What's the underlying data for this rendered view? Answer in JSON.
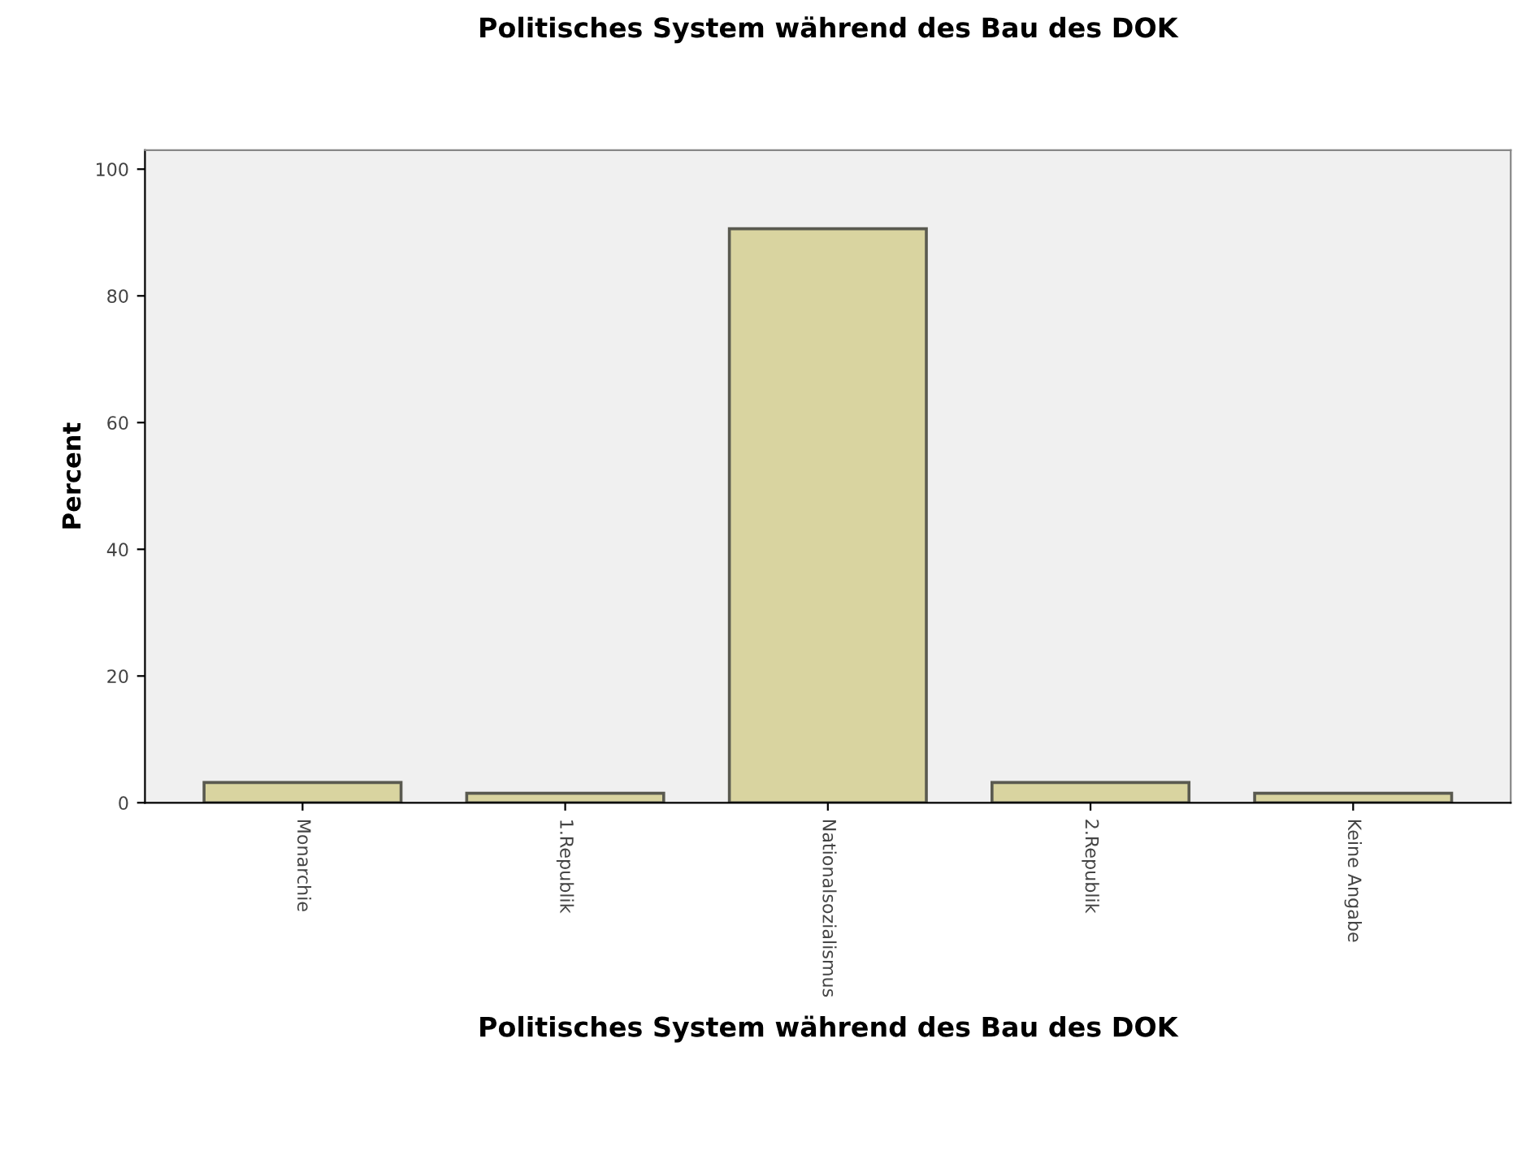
{
  "chart_data": {
    "type": "bar",
    "title": "Politisches System während des Bau des DOK",
    "xlabel": "Politisches System während des Bau des DOK",
    "ylabel": "Percent",
    "categories": [
      "Monarchie",
      "1.Republik",
      "Nationalsozialismus",
      "2.Republik",
      "Keine Angabe"
    ],
    "values": [
      3.2,
      1.5,
      90.6,
      3.2,
      1.5
    ],
    "color": "#d9d4a0",
    "ylim": [
      0,
      103
    ],
    "yticks": [
      0,
      20,
      40,
      60,
      80,
      100
    ],
    "grid": false
  }
}
